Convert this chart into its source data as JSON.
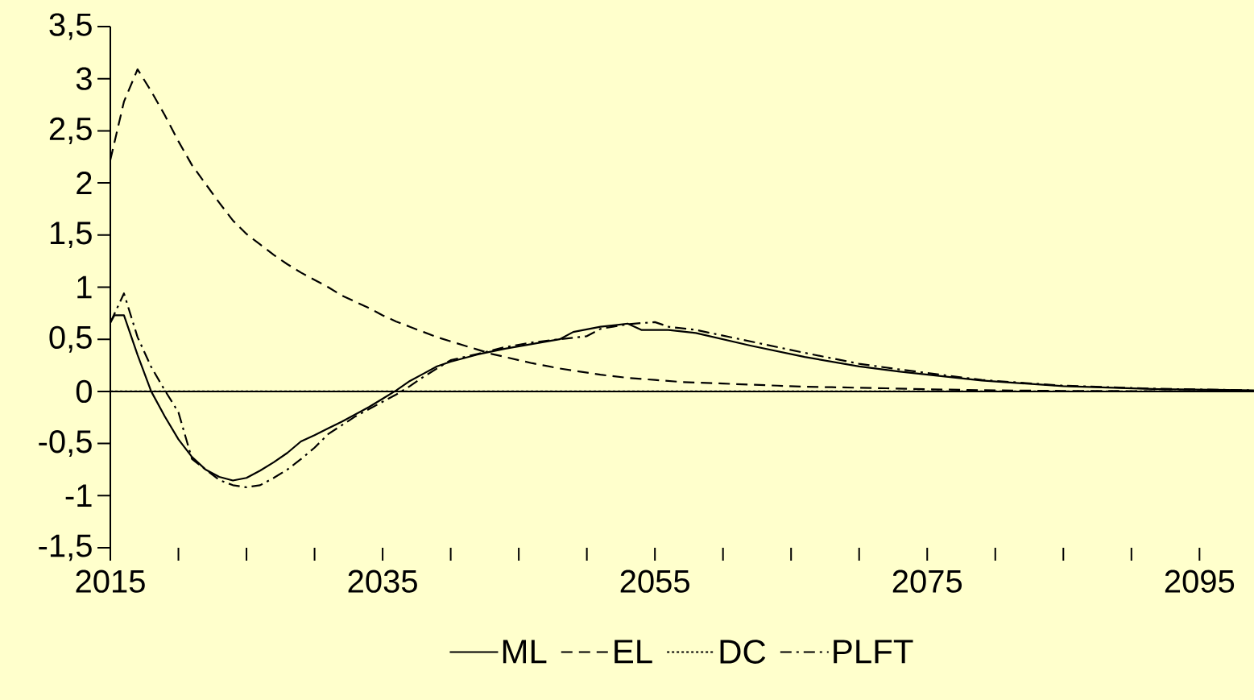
{
  "chart_data": {
    "type": "line",
    "xlim": [
      2015,
      2099
    ],
    "ylim": [
      -1.5,
      3.5
    ],
    "xticks": [
      2015,
      {
        "value": 2020,
        "label": null
      },
      {
        "value": 2025,
        "label": null
      },
      {
        "value": 2030,
        "label": null
      },
      2035,
      {
        "value": 2040,
        "label": null
      },
      {
        "value": 2045,
        "label": null
      },
      {
        "value": 2050,
        "label": null
      },
      2055,
      {
        "value": 2060,
        "label": null
      },
      {
        "value": 2065,
        "label": null
      },
      {
        "value": 2070,
        "label": null
      },
      2075,
      {
        "value": 2080,
        "label": null
      },
      {
        "value": 2085,
        "label": null
      },
      {
        "value": 2090,
        "label": null
      },
      2095
    ],
    "yticks": [
      {
        "value": -1.5,
        "label": "-1,5"
      },
      {
        "value": -1,
        "label": "-1"
      },
      {
        "value": -0.5,
        "label": "-0,5"
      },
      0,
      {
        "value": 0.5,
        "label": "0,5"
      },
      1,
      {
        "value": 1.5,
        "label": "1,5"
      },
      2,
      {
        "value": 2.5,
        "label": "2,5"
      },
      3,
      {
        "value": 3.5,
        "label": "3,5"
      }
    ],
    "grid": false,
    "legend": "bottom",
    "marker": "none",
    "series": [
      {
        "name": "ML",
        "color": "#000000",
        "line_style": "solid",
        "x": [
          2015,
          2015.3,
          2016,
          2017,
          2018,
          2019,
          2020,
          2021,
          2022,
          2023,
          2024,
          2025,
          2026,
          2027,
          2028,
          2029,
          2030,
          2031,
          2032,
          2033,
          2034,
          2035,
          2036,
          2037,
          2038,
          2039,
          2040,
          2042,
          2044,
          2046,
          2048,
          2049,
          2051,
          2053,
          2054,
          2056,
          2058,
          2062,
          2066,
          2070,
          2073,
          2079,
          2085,
          2092,
          2099
        ],
        "values": [
          0.66,
          0.73,
          0.73,
          0.35,
          0.0,
          -0.24,
          -0.46,
          -0.63,
          -0.75,
          -0.82,
          -0.855,
          -0.83,
          -0.76,
          -0.68,
          -0.59,
          -0.48,
          -0.42,
          -0.355,
          -0.29,
          -0.22,
          -0.15,
          -0.07,
          0.01,
          0.1,
          0.17,
          0.24,
          0.285,
          0.355,
          0.41,
          0.455,
          0.5,
          0.57,
          0.62,
          0.65,
          0.59,
          0.59,
          0.56,
          0.44,
          0.33,
          0.24,
          0.19,
          0.105,
          0.05,
          0.022,
          0.01
        ]
      },
      {
        "name": "EL",
        "color": "#000000",
        "line_style": "dashed",
        "x": [
          2015,
          2016,
          2017,
          2018,
          2019,
          2020,
          2021,
          2022,
          2023,
          2024,
          2025,
          2026,
          2027,
          2028,
          2029,
          2030,
          2031,
          2032,
          2033,
          2034,
          2035,
          2036,
          2037,
          2038,
          2039,
          2040,
          2041,
          2042,
          2043,
          2044,
          2045,
          2046,
          2047,
          2048,
          2049,
          2050,
          2051,
          2052,
          2053,
          2054,
          2055,
          2056,
          2057,
          2058,
          2060,
          2062,
          2064,
          2066,
          2068,
          2070,
          2072,
          2075,
          2080,
          2085,
          2090,
          2099
        ],
        "values": [
          2.22,
          2.78,
          3.09,
          2.88,
          2.65,
          2.4,
          2.17,
          1.99,
          1.81,
          1.64,
          1.51,
          1.41,
          1.31,
          1.22,
          1.14,
          1.07,
          1.0,
          0.92,
          0.86,
          0.8,
          0.73,
          0.67,
          0.62,
          0.57,
          0.52,
          0.48,
          0.44,
          0.4,
          0.36,
          0.33,
          0.3,
          0.27,
          0.245,
          0.22,
          0.2,
          0.18,
          0.16,
          0.145,
          0.13,
          0.12,
          0.11,
          0.1,
          0.09,
          0.085,
          0.075,
          0.065,
          0.055,
          0.045,
          0.04,
          0.035,
          0.03,
          0.02,
          0.01,
          0.005,
          0.003,
          0
        ]
      },
      {
        "name": "DC",
        "color": "#000000",
        "line_style": "dotted",
        "x": [
          2015,
          2099
        ],
        "values": [
          0,
          0
        ]
      },
      {
        "name": "PLFT",
        "color": "#000000",
        "line_style": "dashdot",
        "x": [
          2015,
          2016,
          2017,
          2018,
          2019,
          2020,
          2021,
          2022,
          2023,
          2024,
          2025,
          2026,
          2027,
          2028,
          2029,
          2030,
          2031,
          2032,
          2033,
          2034,
          2035,
          2036,
          2037,
          2038,
          2039,
          2040,
          2042,
          2044,
          2046,
          2048,
          2050,
          2051,
          2053,
          2055,
          2056,
          2058,
          2062,
          2066,
          2070,
          2073,
          2079,
          2085,
          2092,
          2099
        ],
        "values": [
          0.66,
          0.94,
          0.52,
          0.235,
          0.01,
          -0.2,
          -0.65,
          -0.75,
          -0.85,
          -0.9,
          -0.92,
          -0.9,
          -0.83,
          -0.75,
          -0.65,
          -0.54,
          -0.41,
          -0.325,
          -0.24,
          -0.17,
          -0.1,
          -0.03,
          0.05,
          0.14,
          0.22,
          0.3,
          0.36,
          0.425,
          0.47,
          0.5,
          0.53,
          0.6,
          0.645,
          0.665,
          0.62,
          0.59,
          0.48,
          0.37,
          0.265,
          0.21,
          0.11,
          0.055,
          0.025,
          0.01
        ]
      }
    ]
  }
}
